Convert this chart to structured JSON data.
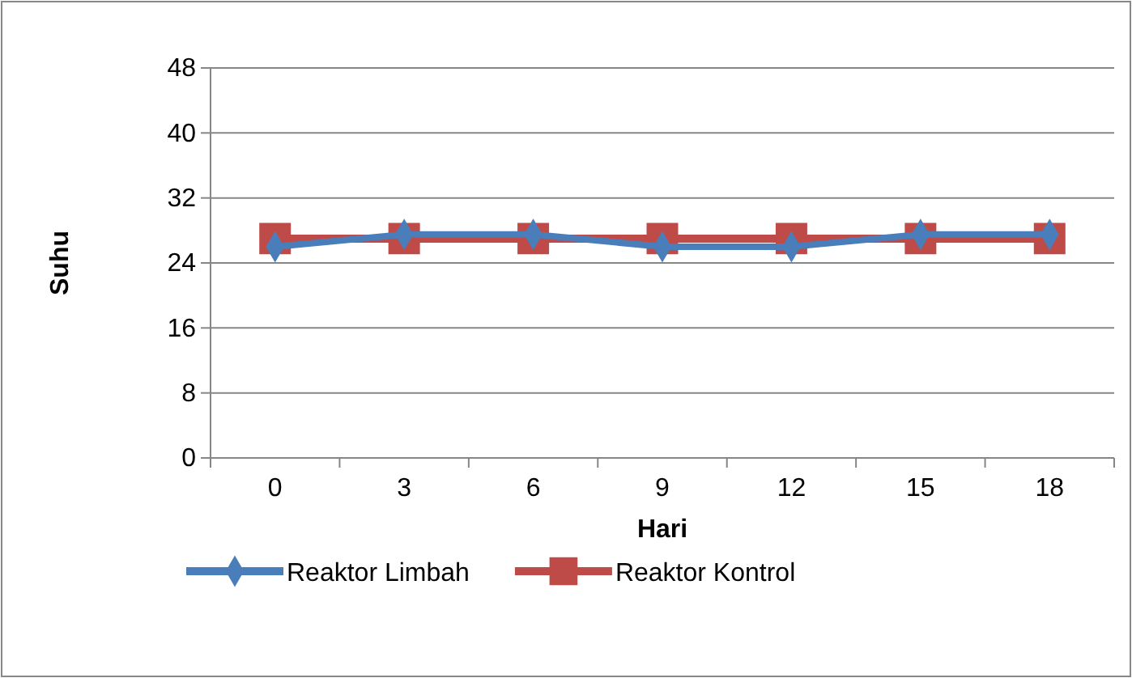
{
  "chart_data": {
    "type": "line",
    "xlabel": "Hari",
    "ylabel": "Suhu",
    "categories": [
      "0",
      "3",
      "6",
      "9",
      "12",
      "15",
      "18"
    ],
    "ylim": [
      0,
      48
    ],
    "yticks": [
      0,
      8,
      16,
      24,
      32,
      40,
      48
    ],
    "grid": "y",
    "legend": "bottom",
    "series": [
      {
        "name": "Reaktor Limbah",
        "color": "#4a7ebb",
        "marker": "diamond",
        "values": [
          26,
          27.5,
          27.5,
          26,
          26,
          27.5,
          27.5
        ]
      },
      {
        "name": "Reaktor Kontrol",
        "color": "#be4b48",
        "marker": "square",
        "values": [
          27,
          27,
          27,
          27,
          27,
          27,
          27
        ]
      }
    ]
  }
}
